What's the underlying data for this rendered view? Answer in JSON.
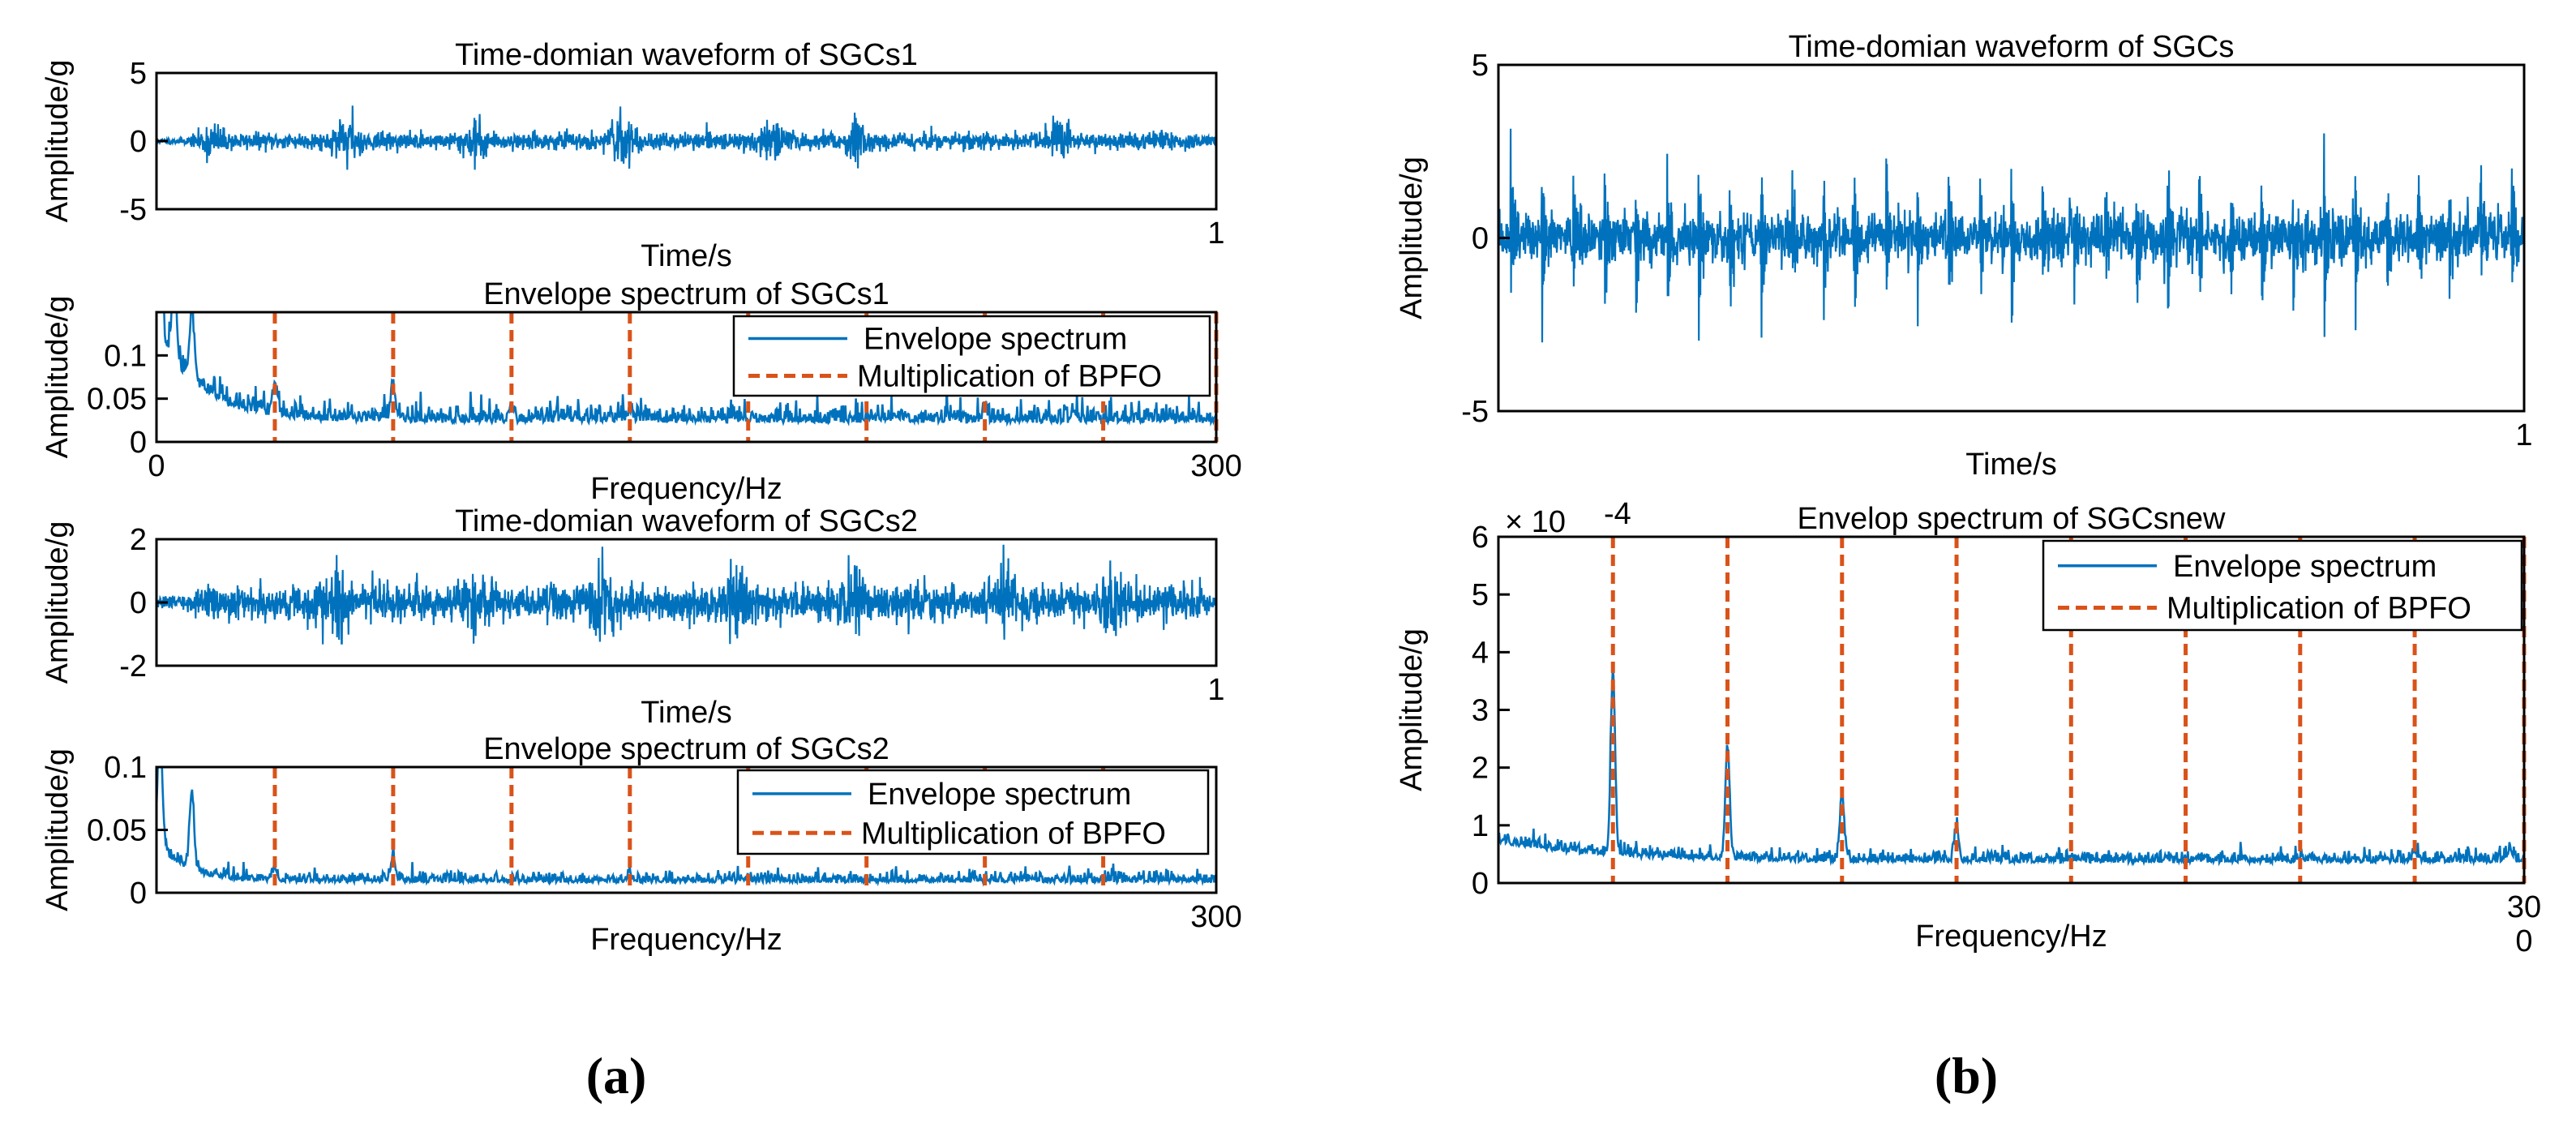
{
  "figure_labels": [
    "(a)",
    "(b)"
  ],
  "colors": {
    "signal": "#0072BD",
    "harmonic": "#D95319",
    "axis": "#000000"
  },
  "chart_data": [
    {
      "id": "a1",
      "type": "line",
      "title": "Time-domian waveform of SGCs1",
      "xlabel": "Time/s",
      "ylabel": "Amplitude/g",
      "xlim": [
        0,
        1
      ],
      "ylim": [
        -5,
        5
      ],
      "xticks": [
        {
          "v": 1,
          "label": "1"
        }
      ],
      "yticks": [
        {
          "v": -5,
          "label": "-5"
        },
        {
          "v": 0,
          "label": "0"
        },
        {
          "v": 5,
          "label": "5"
        }
      ],
      "signal": {
        "kind": "time",
        "noise": 0.3,
        "bursts": [
          0.05,
          0.18,
          0.3,
          0.44,
          0.58,
          0.66,
          0.85
        ],
        "burst_amp": 0.6,
        "peaks": [
          {
            "x": 0.185,
            "y": 2.6
          },
          {
            "x": 0.18,
            "y": -2.1
          },
          {
            "x": 0.3,
            "y": 1.7
          },
          {
            "x": 0.43,
            "y": 1.6
          },
          {
            "x": 0.66,
            "y": 1.7
          },
          {
            "x": 0.85,
            "y": 1.5
          }
        ],
        "seed": 11
      }
    },
    {
      "id": "a2",
      "type": "line",
      "title": "Envelope spectrum of SGCs1",
      "xlabel": "Frequency/Hz",
      "ylabel": "Amplitude/g",
      "xlim": [
        0,
        300
      ],
      "ylim": [
        0,
        0.15
      ],
      "xticks": [
        {
          "v": 0,
          "label": "0"
        },
        {
          "v": 300,
          "label": "300"
        }
      ],
      "yticks": [
        {
          "v": 0,
          "label": "0"
        },
        {
          "v": 0.05,
          "label": "0.05"
        },
        {
          "v": 0.1,
          "label": "0.1"
        }
      ],
      "harmonics": [
        33.5,
        67,
        100.5,
        134,
        167.5,
        201,
        234.5,
        268,
        300
      ],
      "legend": [
        "Envelope spectrum",
        "Multiplication of BPFO"
      ],
      "legend_position": "top-right",
      "signal": {
        "kind": "spectrum",
        "base": 0.022,
        "start": 0.13,
        "decay": 12,
        "noise": 0.012,
        "peaks": [
          {
            "x": 1,
            "y": 0.14
          },
          {
            "x": 5,
            "y": 0.12
          },
          {
            "x": 10,
            "y": 0.1
          },
          {
            "x": 33.5,
            "y": 0.055
          },
          {
            "x": 67,
            "y": 0.058
          },
          {
            "x": 100.5,
            "y": 0.04
          },
          {
            "x": 134,
            "y": 0.034
          },
          {
            "x": 234.5,
            "y": 0.035
          }
        ],
        "seed": 22
      }
    },
    {
      "id": "a3",
      "type": "line",
      "title": "Time-domian waveform of SGCs2",
      "xlabel": "Time/s",
      "ylabel": "Amplitude/g",
      "xlim": [
        0,
        1
      ],
      "ylim": [
        -2,
        2
      ],
      "xticks": [
        {
          "v": 1,
          "label": "1"
        }
      ],
      "yticks": [
        {
          "v": -2,
          "label": "-2"
        },
        {
          "v": 0,
          "label": "0"
        },
        {
          "v": 2,
          "label": "2"
        }
      ],
      "signal": {
        "kind": "time",
        "noise": 0.28,
        "bursts": [
          0.17,
          0.3,
          0.42,
          0.55,
          0.66,
          0.8,
          0.9
        ],
        "burst_amp": 0.35,
        "peaks": [
          {
            "x": 0.17,
            "y": 1.5
          },
          {
            "x": 0.175,
            "y": -1.3
          },
          {
            "x": 0.66,
            "y": -1.0
          },
          {
            "x": 0.81,
            "y": 0.9
          }
        ],
        "seed": 33
      }
    },
    {
      "id": "a4",
      "type": "line",
      "title": "Envelope spectrum of SGCs2",
      "xlabel": "Frequency/Hz",
      "ylabel": "Amplitude/g",
      "xlim": [
        0,
        300
      ],
      "ylim": [
        0,
        0.1
      ],
      "xticks": [
        {
          "v": 300,
          "label": "300"
        }
      ],
      "yticks": [
        {
          "v": 0,
          "label": "0"
        },
        {
          "v": 0.05,
          "label": "0.05"
        },
        {
          "v": 0.1,
          "label": "0.1"
        }
      ],
      "harmonics": [
        33.5,
        67,
        100.5,
        134,
        167.5,
        201,
        234.5,
        268
      ],
      "legend": [
        "Envelope spectrum",
        "Multiplication of BPFO"
      ],
      "legend_position": "top-right",
      "signal": {
        "kind": "spectrum",
        "base": 0.008,
        "start": 0.04,
        "decay": 8,
        "noise": 0.005,
        "peaks": [
          {
            "x": 1,
            "y": 0.1
          },
          {
            "x": 10,
            "y": 0.07
          },
          {
            "x": 67,
            "y": 0.027
          },
          {
            "x": 33.5,
            "y": 0.018
          },
          {
            "x": 134,
            "y": 0.013
          }
        ],
        "seed": 44
      }
    },
    {
      "id": "b1",
      "type": "line",
      "title": "Time-domian waveform of SGCs",
      "xlabel": "Time/s",
      "ylabel": "Amplitude/g",
      "xlim": [
        0,
        1
      ],
      "ylim": [
        -5,
        5
      ],
      "xticks": [
        {
          "v": 1,
          "label": "1"
        }
      ],
      "yticks": [
        {
          "v": -5,
          "label": "-5"
        },
        {
          "v": 0,
          "label": "0"
        },
        {
          "v": 5,
          "label": "5"
        }
      ],
      "signal": {
        "kind": "impulse",
        "noise": 0.35,
        "spacing": 0.0305,
        "start": 0.012,
        "amp_pos": 2.3,
        "amp_neg": 3.2,
        "seed": 55
      }
    },
    {
      "id": "b2",
      "type": "line",
      "title": "Envelop spectrum of SGCsnew",
      "xlabel": "Frequency/Hz",
      "ylabel": "Amplitude/g",
      "exponent_label": "× 10",
      "exponent_value": "-4",
      "xlim": [
        0,
        300
      ],
      "ylim": [
        0,
        6
      ],
      "xticks": [
        {
          "v": 300,
          "label": "30"
        }
      ],
      "xtick_overflow": "0",
      "yticks": [
        {
          "v": 0,
          "label": "0"
        },
        {
          "v": 1,
          "label": "1"
        },
        {
          "v": 2,
          "label": "2"
        },
        {
          "v": 3,
          "label": "3"
        },
        {
          "v": 4,
          "label": "4"
        },
        {
          "v": 5,
          "label": "5"
        },
        {
          "v": 6,
          "label": "6"
        }
      ],
      "harmonics": [
        33.5,
        67,
        100.5,
        134,
        167.5,
        201,
        234.5,
        268,
        300
      ],
      "legend": [
        "Envelope spectrum",
        "Multiplication of BPFO"
      ],
      "legend_position": "top-right",
      "signal": {
        "kind": "spectrum",
        "base": 0.35,
        "start": 0.7,
        "decay": 30,
        "noise": 0.12,
        "peaks": [
          {
            "x": 33.5,
            "y": 3.5
          },
          {
            "x": 67,
            "y": 2.3
          },
          {
            "x": 100.5,
            "y": 1.5
          },
          {
            "x": 134,
            "y": 0.9
          },
          {
            "x": 167.5,
            "y": 0.42
          },
          {
            "x": 201,
            "y": 0.35
          },
          {
            "x": 234.5,
            "y": 0.4
          },
          {
            "x": 268,
            "y": 0.48
          },
          {
            "x": 296,
            "y": 0.55
          }
        ],
        "seed": 66
      }
    }
  ]
}
